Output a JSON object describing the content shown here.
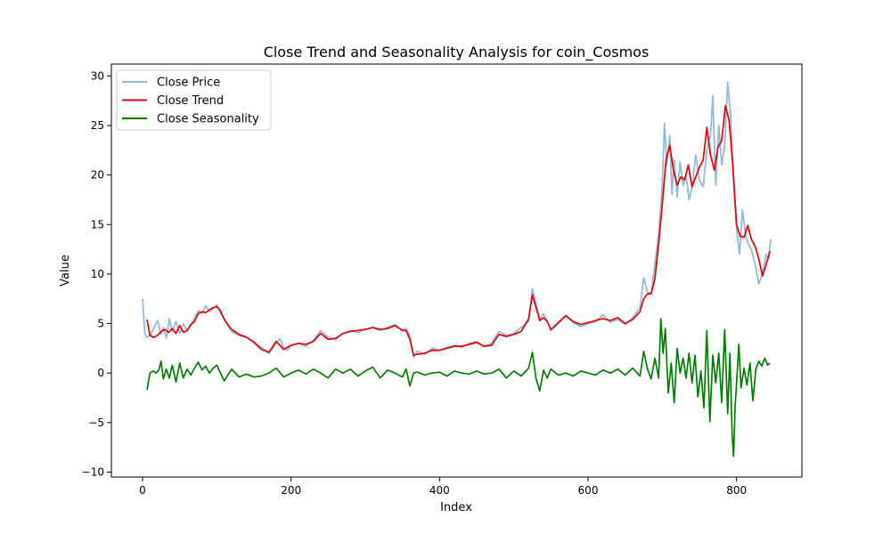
{
  "chart_data": {
    "type": "line",
    "title": "Close Trend and Seasonality Analysis for coin_Cosmos",
    "xlabel": "Index",
    "ylabel": "Value",
    "xlim": [
      -42,
      888
    ],
    "ylim": [
      -10.5,
      31.2
    ],
    "xticks": [
      0,
      200,
      400,
      600,
      800
    ],
    "yticks": [
      -10,
      -5,
      0,
      5,
      10,
      15,
      20,
      25,
      30
    ],
    "grid": false,
    "legend": "top-left",
    "series": [
      {
        "name": "Close Price",
        "color": "#8fbcdb",
        "x": [
          0,
          3,
          6,
          10,
          15,
          20,
          25,
          28,
          32,
          36,
          40,
          45,
          50,
          55,
          60,
          65,
          70,
          75,
          80,
          85,
          90,
          95,
          100,
          105,
          110,
          115,
          120,
          130,
          140,
          150,
          160,
          170,
          180,
          185,
          190,
          195,
          200,
          210,
          220,
          230,
          240,
          250,
          260,
          270,
          280,
          290,
          300,
          310,
          320,
          330,
          340,
          350,
          355,
          360,
          365,
          370,
          380,
          390,
          400,
          410,
          420,
          430,
          440,
          450,
          460,
          470,
          480,
          490,
          500,
          510,
          520,
          525,
          530,
          535,
          540,
          545,
          550,
          560,
          570,
          580,
          590,
          600,
          610,
          620,
          630,
          640,
          650,
          660,
          670,
          675,
          680,
          685,
          690,
          695,
          700,
          703,
          706,
          710,
          713,
          716,
          720,
          724,
          728,
          732,
          736,
          740,
          745,
          750,
          755,
          760,
          765,
          768,
          772,
          776,
          780,
          784,
          788,
          792,
          796,
          800,
          804,
          808,
          812,
          816,
          820,
          825,
          830,
          835,
          840,
          843,
          846
        ],
        "values": [
          7.5,
          4.0,
          3.6,
          3.8,
          4.5,
          5.3,
          3.9,
          4.6,
          3.5,
          5.5,
          4.2,
          5.2,
          4.0,
          5.0,
          4.3,
          4.8,
          5.6,
          6.3,
          6.0,
          6.8,
          6.2,
          6.5,
          6.9,
          6.0,
          5.5,
          4.8,
          4.2,
          3.8,
          3.6,
          3.2,
          2.6,
          2.0,
          3.0,
          3.5,
          2.5,
          2.3,
          2.8,
          3.0,
          2.7,
          3.3,
          4.3,
          3.6,
          3.4,
          4.0,
          4.3,
          4.1,
          4.4,
          4.6,
          4.3,
          4.6,
          4.9,
          4.3,
          4.5,
          3.8,
          1.6,
          2.2,
          1.9,
          2.5,
          2.3,
          2.6,
          2.8,
          2.6,
          3.0,
          3.2,
          2.7,
          3.0,
          4.2,
          3.8,
          4.0,
          4.6,
          5.2,
          8.5,
          7.0,
          5.5,
          6.0,
          5.2,
          4.3,
          5.0,
          5.8,
          5.1,
          4.7,
          5.0,
          5.2,
          5.9,
          5.1,
          5.4,
          4.9,
          5.6,
          6.6,
          9.6,
          8.2,
          8.0,
          11.0,
          14.0,
          19.0,
          25.2,
          21.0,
          24.0,
          18.0,
          21.5,
          17.8,
          21.3,
          18.9,
          20.0,
          17.5,
          18.7,
          22.0,
          19.5,
          18.8,
          22.5,
          24.0,
          28.0,
          19.0,
          25.0,
          21.0,
          23.0,
          29.4,
          26.0,
          19.0,
          14.5,
          12.0,
          16.5,
          14.0,
          13.0,
          12.5,
          11.0,
          9.0,
          10.0,
          12.0,
          11.5,
          13.5
        ]
      },
      {
        "name": "Close Trend",
        "color": "#ee0000",
        "x": [
          6,
          10,
          15,
          20,
          25,
          30,
          35,
          40,
          45,
          50,
          55,
          60,
          65,
          70,
          75,
          80,
          85,
          90,
          95,
          100,
          105,
          110,
          120,
          130,
          140,
          150,
          160,
          170,
          180,
          190,
          200,
          210,
          220,
          230,
          240,
          250,
          260,
          270,
          280,
          290,
          300,
          310,
          320,
          330,
          340,
          350,
          355,
          360,
          365,
          370,
          380,
          390,
          400,
          410,
          420,
          430,
          440,
          450,
          460,
          470,
          480,
          490,
          500,
          510,
          520,
          525,
          530,
          535,
          540,
          545,
          550,
          560,
          570,
          580,
          590,
          600,
          610,
          620,
          630,
          640,
          650,
          660,
          670,
          675,
          680,
          685,
          690,
          695,
          700,
          705,
          710,
          715,
          720,
          725,
          730,
          735,
          740,
          745,
          750,
          755,
          760,
          765,
          770,
          775,
          780,
          785,
          790,
          795,
          800,
          805,
          810,
          815,
          820,
          825,
          830,
          835,
          840,
          845
        ],
        "values": [
          5.4,
          3.8,
          3.6,
          3.8,
          4.2,
          4.4,
          4.1,
          4.5,
          4.0,
          4.8,
          4.1,
          4.3,
          4.9,
          5.2,
          6.0,
          6.2,
          6.1,
          6.4,
          6.6,
          6.7,
          6.3,
          5.4,
          4.4,
          3.9,
          3.6,
          3.1,
          2.4,
          2.1,
          3.2,
          2.4,
          2.8,
          3.0,
          2.9,
          3.2,
          4.0,
          3.4,
          3.5,
          4.0,
          4.2,
          4.3,
          4.4,
          4.6,
          4.4,
          4.5,
          4.8,
          4.3,
          4.3,
          3.4,
          1.8,
          1.9,
          2.0,
          2.3,
          2.3,
          2.5,
          2.7,
          2.7,
          2.9,
          3.1,
          2.7,
          2.8,
          3.9,
          3.7,
          3.9,
          4.2,
          5.5,
          7.9,
          6.6,
          5.3,
          5.6,
          5.2,
          4.4,
          5.1,
          5.8,
          5.2,
          4.9,
          5.1,
          5.3,
          5.5,
          5.3,
          5.6,
          5.0,
          5.4,
          6.2,
          7.5,
          8.0,
          8.0,
          9.5,
          13.0,
          17.0,
          21.5,
          23.0,
          20.5,
          19.0,
          19.8,
          19.5,
          21.0,
          18.8,
          19.8,
          20.8,
          21.5,
          24.8,
          22.0,
          20.5,
          22.8,
          23.5,
          27.0,
          25.5,
          21.0,
          15.0,
          13.8,
          13.7,
          14.9,
          13.5,
          12.8,
          11.5,
          9.8,
          11.0,
          12.3
        ]
      },
      {
        "name": "Close Seasonality",
        "color": "#008000",
        "x": [
          6,
          10,
          14,
          18,
          22,
          25,
          28,
          32,
          36,
          40,
          45,
          50,
          55,
          60,
          65,
          70,
          75,
          80,
          85,
          90,
          95,
          100,
          110,
          120,
          130,
          140,
          150,
          160,
          170,
          180,
          190,
          200,
          210,
          220,
          230,
          240,
          250,
          260,
          270,
          280,
          290,
          300,
          310,
          320,
          330,
          340,
          350,
          355,
          360,
          365,
          370,
          380,
          390,
          400,
          410,
          420,
          430,
          440,
          450,
          460,
          470,
          480,
          490,
          500,
          510,
          520,
          525,
          530,
          535,
          540,
          545,
          550,
          560,
          570,
          580,
          590,
          600,
          610,
          620,
          630,
          640,
          650,
          660,
          670,
          675,
          680,
          685,
          690,
          695,
          698,
          701,
          704,
          708,
          712,
          716,
          720,
          724,
          728,
          732,
          736,
          740,
          744,
          748,
          752,
          756,
          760,
          764,
          768,
          772,
          776,
          780,
          784,
          788,
          791,
          794,
          796,
          798,
          800,
          803,
          806,
          810,
          814,
          818,
          822,
          826,
          830,
          834,
          838,
          842,
          845
        ],
        "values": [
          -1.7,
          0.0,
          0.2,
          0.0,
          0.3,
          1.2,
          -0.6,
          0.4,
          -0.5,
          0.8,
          -0.9,
          1.0,
          -0.5,
          0.4,
          -0.2,
          0.5,
          1.1,
          0.3,
          0.7,
          0.0,
          0.5,
          0.8,
          -0.8,
          0.4,
          -0.4,
          -0.1,
          -0.4,
          -0.3,
          0.0,
          0.5,
          -0.4,
          0.0,
          0.3,
          -0.1,
          0.4,
          0.0,
          -0.5,
          0.4,
          0.0,
          0.4,
          -0.3,
          0.2,
          0.6,
          -0.5,
          0.3,
          0.0,
          -0.4,
          0.4,
          -1.3,
          0.0,
          0.1,
          -0.2,
          0.0,
          0.1,
          -0.3,
          0.2,
          0.0,
          -0.1,
          0.2,
          -0.1,
          0.0,
          0.4,
          -0.5,
          0.2,
          -0.3,
          0.5,
          2.1,
          -0.6,
          -1.8,
          0.3,
          -0.5,
          0.4,
          -0.2,
          0.0,
          -0.3,
          0.2,
          0.0,
          -0.2,
          0.3,
          0.0,
          0.4,
          -0.2,
          0.5,
          -0.3,
          2.2,
          0.4,
          -0.6,
          1.5,
          -0.5,
          5.5,
          2.0,
          4.5,
          -2.0,
          1.0,
          -3.0,
          2.5,
          0.0,
          1.5,
          -0.5,
          2.0,
          -1.0,
          1.8,
          -2.4,
          0.2,
          -3.5,
          4.3,
          -4.9,
          1.8,
          -1.0,
          2.0,
          -3.0,
          4.4,
          -4.1,
          2.0,
          -6.2,
          -8.4,
          -3.5,
          -1.0,
          2.9,
          -1.5,
          0.5,
          -1.2,
          1.0,
          -2.8,
          0.4,
          1.2,
          0.7,
          1.5,
          0.8,
          1.0
        ]
      }
    ]
  }
}
